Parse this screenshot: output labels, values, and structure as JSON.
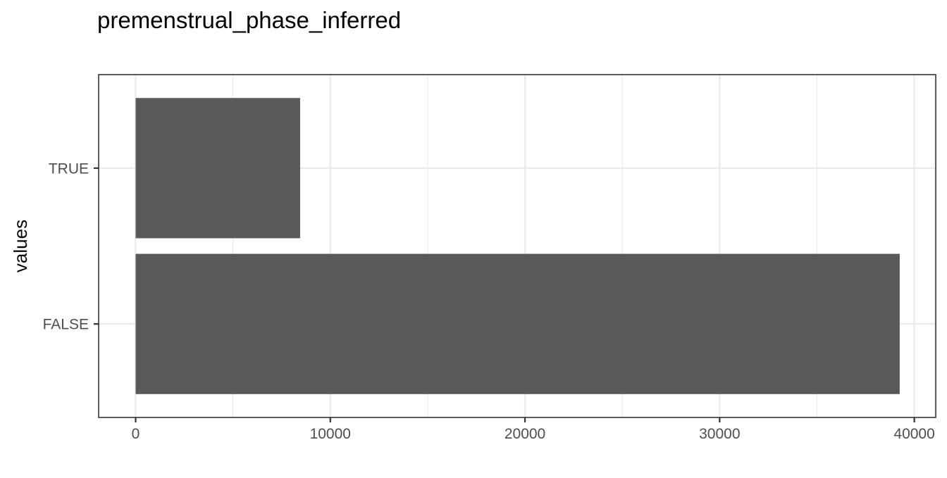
{
  "chart_data": {
    "type": "bar",
    "orientation": "horizontal",
    "title": "premenstrual_phase_inferred",
    "xlabel": "",
    "ylabel": "values",
    "categories": [
      "FALSE",
      "TRUE"
    ],
    "values": [
      39250,
      8450
    ],
    "xlim": [
      -1900,
      41100
    ],
    "x_ticks": [
      0,
      10000,
      20000,
      30000,
      40000
    ],
    "x_tick_labels": [
      "0",
      "10000",
      "20000",
      "30000",
      "40000"
    ],
    "grid": true,
    "legend": "none",
    "colors": {
      "bar": "#595959",
      "grid": "#ebebeb",
      "panel_border": "#333333",
      "tick_text": "#4d4d4d",
      "background": "#ffffff"
    }
  }
}
